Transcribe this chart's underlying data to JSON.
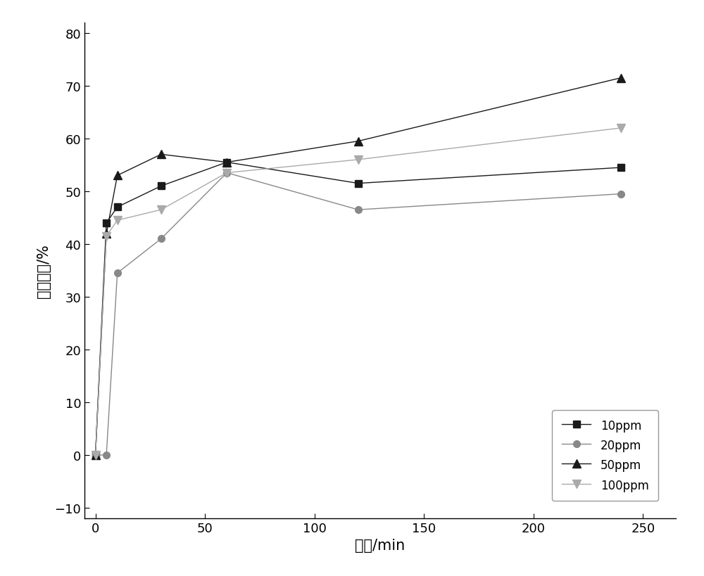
{
  "series": [
    {
      "label": "10ppm",
      "x": [
        0,
        5,
        10,
        30,
        60,
        120,
        240
      ],
      "y": [
        0,
        44,
        47,
        51,
        55.5,
        51.5,
        54.5
      ],
      "color": "#1a1a1a",
      "marker": "s",
      "linestyle": "-",
      "linewidth": 1.0,
      "markersize": 7
    },
    {
      "label": "20ppm",
      "x": [
        0,
        5,
        10,
        30,
        60,
        120,
        240
      ],
      "y": [
        0,
        0,
        34.5,
        41,
        53.5,
        46.5,
        49.5
      ],
      "color": "#888888",
      "marker": "o",
      "linestyle": "-",
      "linewidth": 1.0,
      "markersize": 7
    },
    {
      "label": "50ppm",
      "x": [
        0,
        5,
        10,
        30,
        60,
        120,
        240
      ],
      "y": [
        0,
        42,
        53,
        57,
        55.5,
        59.5,
        71.5
      ],
      "color": "#1a1a1a",
      "marker": "^",
      "linestyle": "-",
      "linewidth": 1.0,
      "markersize": 8
    },
    {
      "label": "100ppm",
      "x": [
        0,
        5,
        10,
        30,
        60,
        120,
        240
      ],
      "y": [
        0,
        41.5,
        44.5,
        46.5,
        53.5,
        56,
        62
      ],
      "color": "#aaaaaa",
      "marker": "v",
      "linestyle": "-",
      "linewidth": 1.0,
      "markersize": 8
    }
  ],
  "xlabel": "时间/min",
  "ylabel": "吸附效率/%",
  "xlim": [
    -5,
    265
  ],
  "ylim": [
    -12,
    82
  ],
  "xticks": [
    0,
    50,
    100,
    150,
    200,
    250
  ],
  "yticks": [
    -10,
    0,
    10,
    20,
    30,
    40,
    50,
    60,
    70,
    80
  ],
  "background_color": "#ffffff",
  "label_fontsize": 15,
  "tick_fontsize": 13,
  "legend_fontsize": 12
}
